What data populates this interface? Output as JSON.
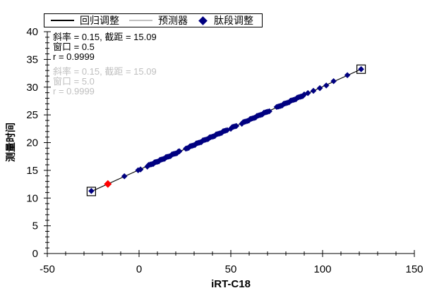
{
  "chart_data": {
    "type": "scatter",
    "title": "",
    "xlabel": "iRT-C18",
    "ylabel": "测量时间",
    "xlim": [
      -50,
      150
    ],
    "ylim": [
      0,
      40
    ],
    "x_major_ticks": [
      -50,
      0,
      50,
      100,
      150
    ],
    "x_minor_step": 10,
    "y_major_step": 5,
    "y_minor_step": 1,
    "grid": false,
    "legend_position": "top",
    "legend": [
      {
        "label": "回归调整",
        "type": "line",
        "color": "#000000"
      },
      {
        "label": "预测器",
        "type": "line",
        "color": "#c0c0c0"
      },
      {
        "label": "肽段调整",
        "type": "diamond",
        "color": "#000080"
      }
    ],
    "annotations": {
      "primary": {
        "color": "#000000",
        "lines": [
          "斜率 = 0.15, 截距 = 15.09",
          "窗口 = 0.5",
          "r = 0.9999"
        ]
      },
      "secondary": {
        "color": "#bfbfbf",
        "lines": [
          "斜率 = 0.15, 截距 = 15.09",
          "窗口 = 5.0",
          "r = 0.9999"
        ]
      }
    },
    "regression": {
      "slope": 0.15,
      "intercept": 15.09,
      "r": 0.9999,
      "x_start": -26,
      "x_end": 121
    },
    "series": [
      {
        "name": "肽段调整",
        "marker": "diamond",
        "color": "#000080",
        "x": [
          -26,
          -8,
          -0.5,
          0.8,
          4.5,
          5.2,
          6,
          6.6,
          7.2,
          7.8,
          8.4,
          9,
          9.6,
          10.2,
          10.8,
          11.4,
          12,
          12.7,
          13.4,
          14,
          14.6,
          15.2,
          15.8,
          16.5,
          17.2,
          18,
          18.7,
          19.4,
          20,
          20.7,
          21.4,
          22,
          25.5,
          26.2,
          27,
          27.7,
          28.4,
          29,
          29.8,
          30.5,
          31.2,
          32,
          32.7,
          33.4,
          34,
          34.8,
          35.5,
          36.2,
          37,
          37.7,
          38.4,
          39,
          39.8,
          40.5,
          41.2,
          42,
          42.8,
          43.5,
          44.2,
          45,
          45.8,
          46.5,
          47.2,
          48,
          50,
          50.8,
          51.5,
          52.3,
          53,
          56,
          56.8,
          57.5,
          58.2,
          59,
          59.8,
          60.5,
          61.2,
          62,
          62.8,
          63.5,
          64.2,
          65,
          65.8,
          66.5,
          67.2,
          68,
          68.8,
          69.5,
          70.2,
          71,
          75,
          75.8,
          76.5,
          77.2,
          78,
          78.8,
          79.5,
          80.2,
          81,
          81.8,
          82.5,
          83.2,
          84,
          84.8,
          85.5,
          86.2,
          87,
          87.8,
          88.5,
          89.2,
          90,
          92,
          95,
          98.5,
          102,
          106,
          113.5,
          121
        ]
      }
    ],
    "y_rule": "y = slope * x + intercept",
    "outlined_points_x": [
      -26,
      121
    ],
    "highlight_point": {
      "x": -17,
      "color": "#ff0000"
    },
    "colors": {
      "axis": "#000000",
      "regression_line": "#000000",
      "predictor_line": "#c0c0c0",
      "points": "#000080",
      "highlight": "#ff0000",
      "secondary_text": "#bfbfbf"
    }
  }
}
